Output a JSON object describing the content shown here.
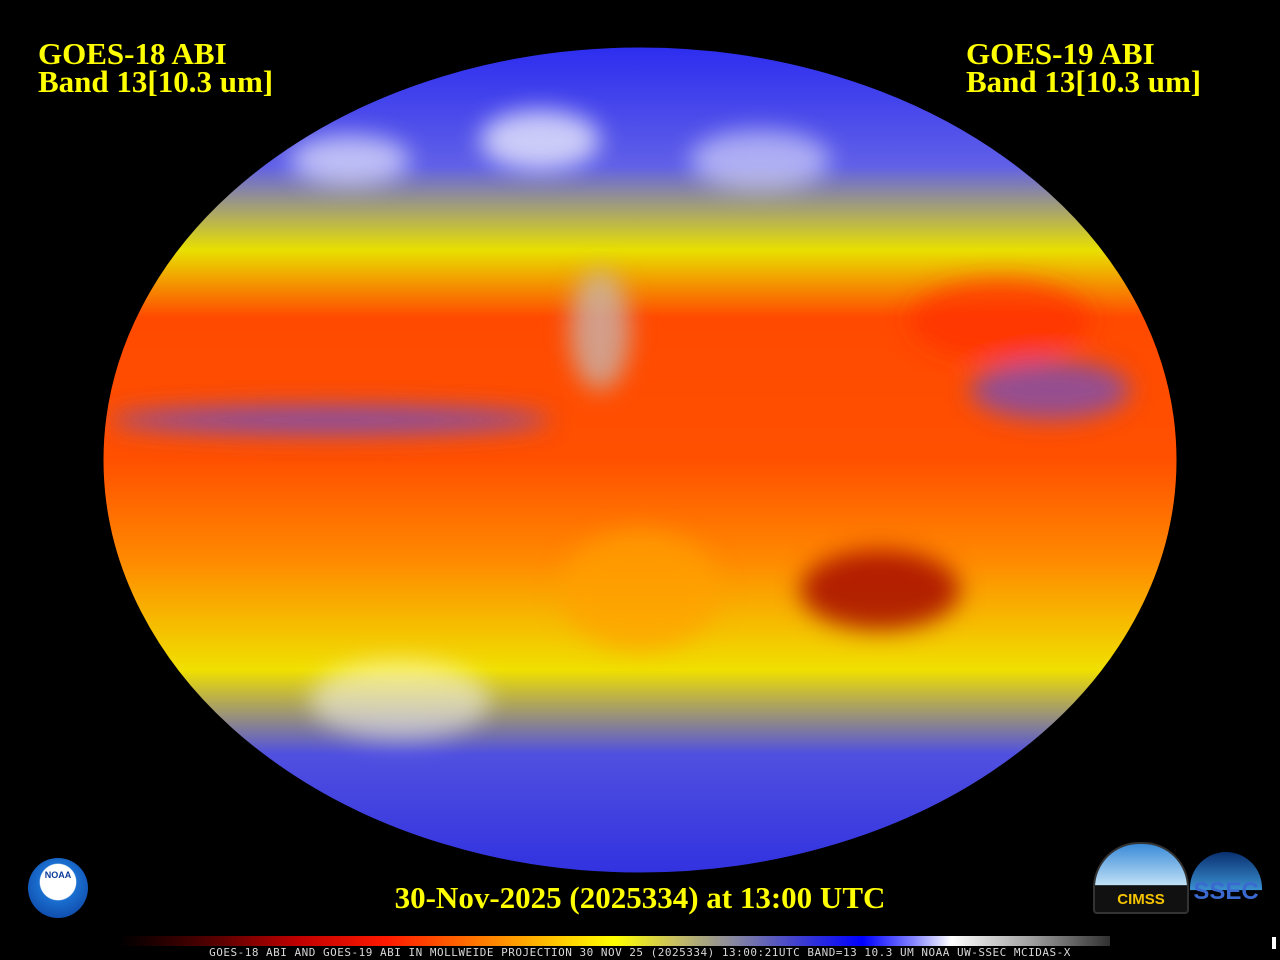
{
  "left_title": {
    "line1": "GOES-18 ABI",
    "line2": "Band 13[10.3 um]"
  },
  "right_title": {
    "line1": "GOES-19 ABI",
    "line2": "Band 13[10.3 um]"
  },
  "date_label": "30-Nov-2025 (2025334) at 13:00 UTC",
  "footer": "GOES-18 ABI AND GOES-19 ABI IN MOLLWEIDE PROJECTION 30 NOV 25 (2025334) 13:00:21UTC BAND=13 10.3 UM NOAA UW-SSEC MCIDAS-X",
  "logos": {
    "noaa": "NOAA",
    "cimss": "CIMSS",
    "ssec": "SSEC"
  },
  "colors": {
    "text": "#ffff00",
    "background": "#000000",
    "warm": "#ff3000",
    "cold": "#0000ff",
    "cloud": "#ffffff"
  }
}
